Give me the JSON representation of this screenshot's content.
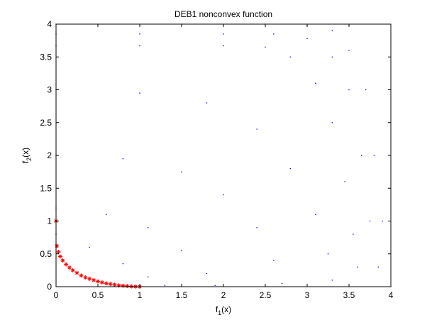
{
  "chart_data": {
    "type": "scatter",
    "title": "DEB1 nonconvex function",
    "xlabel": {
      "base": "f",
      "sub": "1",
      "suffix": "(x)"
    },
    "ylabel": {
      "base": "f",
      "sub": "2",
      "suffix": "(x)"
    },
    "xlim": [
      0,
      4
    ],
    "ylim": [
      0,
      4
    ],
    "xticks": [
      0,
      0.5,
      1,
      1.5,
      2,
      2.5,
      3,
      3.5,
      4
    ],
    "yticks": [
      0,
      0.5,
      1,
      1.5,
      2,
      2.5,
      3,
      3.5,
      4
    ],
    "xtick_labels": [
      "0",
      "0.5",
      "1",
      "1.5",
      "2",
      "2.5",
      "3",
      "3.5",
      "4"
    ],
    "ytick_labels": [
      "0",
      "0.5",
      "1",
      "1.5",
      "2",
      "2.5",
      "3",
      "3.5",
      "4"
    ],
    "grid": false,
    "legend": "none",
    "series": [
      {
        "marker": "dot",
        "color": "#0000ff",
        "description_of_points": "objective space sampling",
        "points": [
          [
            0,
            4.0
          ],
          [
            0.5,
            4.0
          ],
          [
            1,
            4.0
          ],
          [
            1.5,
            4.0
          ],
          [
            2,
            4.0
          ],
          [
            2.5,
            4.0
          ],
          [
            3,
            3.97
          ],
          [
            3.3,
            3.9
          ],
          [
            3.5,
            3.6
          ],
          [
            3.7,
            3.0
          ],
          [
            3.8,
            2.0
          ],
          [
            3.9,
            1.0
          ],
          [
            4.0,
            0.0
          ],
          [
            0,
            3.85
          ],
          [
            1,
            3.85
          ],
          [
            2,
            3.85
          ],
          [
            2.6,
            3.85
          ],
          [
            3,
            3.78
          ],
          [
            3.3,
            3.5
          ],
          [
            3.5,
            3.0
          ],
          [
            3.65,
            2.0
          ],
          [
            3.75,
            1.0
          ],
          [
            3.85,
            0.3
          ],
          [
            0,
            3.67
          ],
          [
            1,
            3.67
          ],
          [
            2,
            3.67
          ],
          [
            2.5,
            3.65
          ],
          [
            2.8,
            3.5
          ],
          [
            3.1,
            3.1
          ],
          [
            3.3,
            2.5
          ],
          [
            3.45,
            1.6
          ],
          [
            3.55,
            0.8
          ],
          [
            3.6,
            0.3
          ],
          [
            0,
            3.0
          ],
          [
            1,
            2.95
          ],
          [
            1.8,
            2.8
          ],
          [
            2.4,
            2.4
          ],
          [
            2.8,
            1.8
          ],
          [
            3.1,
            1.1
          ],
          [
            3.25,
            0.5
          ],
          [
            3.3,
            0.1
          ],
          [
            0,
            2.0
          ],
          [
            0.8,
            1.95
          ],
          [
            1.5,
            1.75
          ],
          [
            2.0,
            1.4
          ],
          [
            2.4,
            0.9
          ],
          [
            2.6,
            0.4
          ],
          [
            2.7,
            0.05
          ],
          [
            0,
            1.2
          ],
          [
            0.6,
            1.1
          ],
          [
            1.1,
            0.9
          ],
          [
            1.5,
            0.55
          ],
          [
            1.8,
            0.2
          ],
          [
            1.9,
            0.02
          ],
          [
            0,
            0.8
          ],
          [
            0.4,
            0.6
          ],
          [
            0.8,
            0.35
          ],
          [
            1.1,
            0.15
          ],
          [
            1.3,
            0.02
          ]
        ]
      },
      {
        "marker": "star",
        "color": "#ff0000",
        "description_of_points": "Pareto front",
        "points": [
          [
            0,
            1.0
          ],
          [
            0.01,
            0.62
          ],
          [
            0.03,
            0.53
          ],
          [
            0.05,
            0.46
          ],
          [
            0.08,
            0.4
          ],
          [
            0.12,
            0.34
          ],
          [
            0.16,
            0.29
          ],
          [
            0.2,
            0.25
          ],
          [
            0.25,
            0.21
          ],
          [
            0.3,
            0.17
          ],
          [
            0.35,
            0.14
          ],
          [
            0.4,
            0.12
          ],
          [
            0.45,
            0.1
          ],
          [
            0.5,
            0.08
          ],
          [
            0.55,
            0.065
          ],
          [
            0.6,
            0.05
          ],
          [
            0.65,
            0.04
          ],
          [
            0.7,
            0.03
          ],
          [
            0.75,
            0.02
          ],
          [
            0.8,
            0.015
          ],
          [
            0.85,
            0.01
          ],
          [
            0.9,
            0.005
          ],
          [
            0.95,
            0.002
          ],
          [
            1.0,
            0.0
          ]
        ]
      }
    ]
  }
}
